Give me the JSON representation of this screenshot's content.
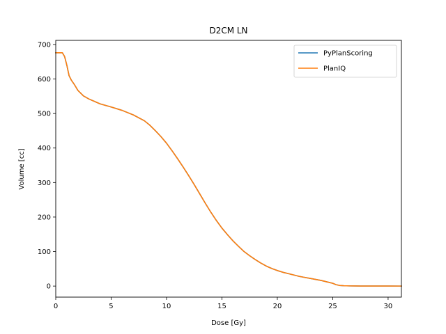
{
  "chart_data": {
    "type": "line",
    "title": "D2CM LN",
    "xlabel": "Dose [Gy]",
    "ylabel": "Volume [cc]",
    "xlim": [
      0,
      31.2
    ],
    "ylim": [
      -32,
      712
    ],
    "xticks": [
      0,
      5,
      10,
      15,
      20,
      25,
      30
    ],
    "yticks": [
      0,
      100,
      200,
      300,
      400,
      500,
      600,
      700
    ],
    "grid": false,
    "legend_position": "top-right",
    "series": [
      {
        "name": "PyPlanScoring",
        "color": "#1f77b4",
        "x": [
          0,
          0.3,
          0.6,
          0.8,
          1.0,
          1.2,
          1.4,
          1.7,
          2.0,
          2.5,
          3.0,
          3.5,
          4.0,
          5.0,
          6.0,
          7.0,
          8.0,
          8.5,
          9.0,
          9.5,
          10.0,
          10.5,
          11.0,
          11.5,
          12.0,
          12.5,
          13.0,
          13.5,
          14.0,
          14.5,
          15.0,
          15.5,
          16.0,
          16.5,
          17.0,
          17.5,
          18.0,
          18.5,
          19.0,
          19.5,
          20.0,
          20.5,
          21.0,
          21.5,
          22.0,
          22.5,
          23.0,
          23.5,
          24.0,
          24.5,
          25.0,
          25.3,
          25.6,
          26.0,
          26.5,
          27.0,
          27.5,
          28.0,
          29.0,
          30.0,
          31.2
        ],
        "values": [
          676,
          676,
          676,
          665,
          640,
          610,
          597,
          583,
          567,
          551,
          542,
          535,
          528,
          519,
          509,
          496,
          479,
          466,
          450,
          433,
          414,
          392,
          369,
          345,
          320,
          294,
          267,
          240,
          214,
          190,
          168,
          149,
          131,
          115,
          100,
          88,
          77,
          67,
          58,
          51,
          45,
          40,
          36,
          32,
          28,
          25,
          22,
          19,
          16,
          12,
          8,
          4,
          2,
          1,
          0.5,
          0.3,
          0.2,
          0.1,
          0.1,
          0.1,
          0
        ]
      },
      {
        "name": "PlanIQ",
        "color": "#ff7f0e",
        "x": [
          0,
          0.3,
          0.6,
          0.8,
          1.0,
          1.2,
          1.4,
          1.7,
          2.0,
          2.5,
          3.0,
          3.5,
          4.0,
          5.0,
          6.0,
          7.0,
          8.0,
          8.5,
          9.0,
          9.5,
          10.0,
          10.5,
          11.0,
          11.5,
          12.0,
          12.5,
          13.0,
          13.5,
          14.0,
          14.5,
          15.0,
          15.5,
          16.0,
          16.5,
          17.0,
          17.5,
          18.0,
          18.5,
          19.0,
          19.5,
          20.0,
          20.5,
          21.0,
          21.5,
          22.0,
          22.5,
          23.0,
          23.5,
          24.0,
          24.5,
          25.0,
          25.3,
          25.6,
          26.0,
          26.5,
          27.0,
          27.5,
          28.0,
          29.0,
          30.0,
          31.2
        ],
        "values": [
          676,
          676,
          676,
          665,
          640,
          610,
          597,
          583,
          567,
          551,
          542,
          535,
          528,
          519,
          509,
          496,
          479,
          466,
          450,
          433,
          414,
          392,
          369,
          345,
          320,
          294,
          267,
          240,
          214,
          190,
          168,
          149,
          131,
          115,
          100,
          88,
          77,
          67,
          58,
          51,
          45,
          40,
          36,
          32,
          28,
          25,
          22,
          19,
          16,
          12,
          8,
          4,
          2,
          1,
          0.5,
          0.3,
          0.2,
          0.1,
          0.1,
          0.1,
          0
        ]
      }
    ]
  }
}
